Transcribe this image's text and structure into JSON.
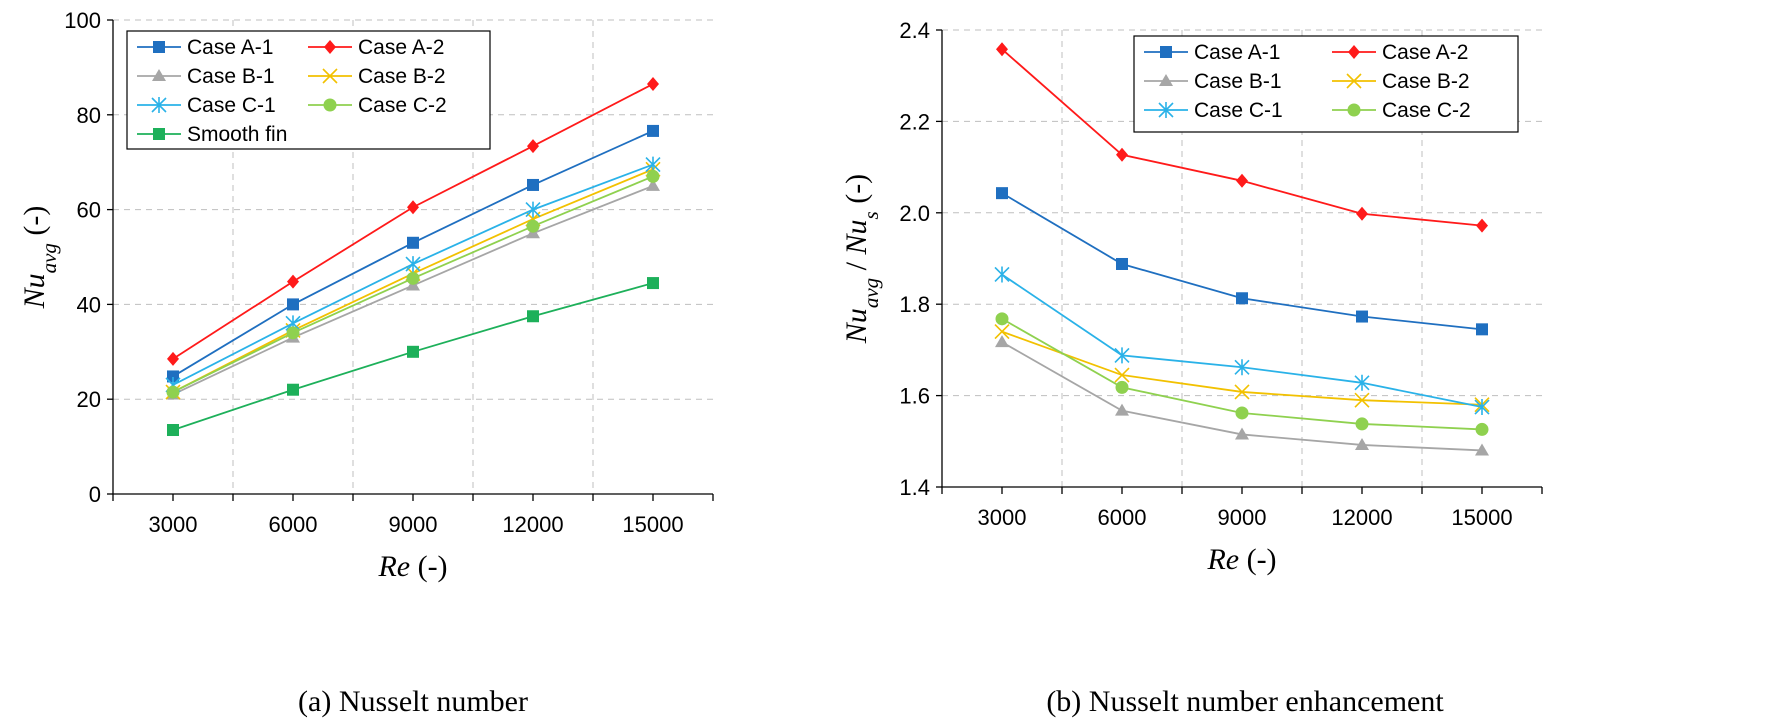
{
  "colors": {
    "Case A-1": "#1f6fc0",
    "Case A-2": "#ff1a1a",
    "Case B-1": "#a6a6a6",
    "Case B-2": "#f2c100",
    "Case C-1": "#2ab2e8",
    "Case C-2": "#8fd14f",
    "Smooth fin": "#1db05a"
  },
  "markers": {
    "Case A-1": "square",
    "Case A-2": "diamond",
    "Case B-1": "triangle",
    "Case B-2": "x",
    "Case C-1": "star",
    "Case C-2": "circle",
    "Smooth fin": "square"
  },
  "chart_data": [
    {
      "type": "line",
      "title": "",
      "caption": "(a) Nusselt number",
      "xlabel_italic": "Re",
      "xlabel_rest": " (-)",
      "ylabel_main": "Nu",
      "ylabel_sub": "avg",
      "ylabel_rest": " (-)",
      "x": [
        3000,
        6000,
        9000,
        12000,
        15000
      ],
      "x_tick_labels": [
        "3000",
        "6000",
        "9000",
        "12000",
        "15000"
      ],
      "xlim": [
        1500,
        16500
      ],
      "ylim": [
        0,
        100
      ],
      "y_ticks": [
        0,
        20,
        40,
        60,
        80,
        100
      ],
      "y_tick_labels": [
        "0",
        "20",
        "40",
        "60",
        "80",
        "100"
      ],
      "legend_position": "top-left",
      "grid": true,
      "series": [
        {
          "name": "Case A-1",
          "values": [
            24.8,
            40.0,
            53.0,
            65.2,
            76.6
          ]
        },
        {
          "name": "Case A-2",
          "values": [
            28.5,
            44.8,
            60.5,
            73.4,
            86.5
          ]
        },
        {
          "name": "Case B-1",
          "values": [
            21.0,
            33.0,
            44.0,
            55.0,
            65.0
          ]
        },
        {
          "name": "Case B-2",
          "values": [
            21.5,
            34.5,
            46.5,
            58.0,
            68.5
          ]
        },
        {
          "name": "Case C-1",
          "values": [
            23.0,
            36.0,
            48.5,
            60.0,
            69.5
          ]
        },
        {
          "name": "Case C-2",
          "values": [
            21.5,
            34.0,
            45.5,
            56.5,
            67.0
          ]
        },
        {
          "name": "Smooth fin",
          "values": [
            13.5,
            22.0,
            30.0,
            37.5,
            44.5
          ]
        }
      ]
    },
    {
      "type": "line",
      "title": "",
      "caption": "(b) Nusselt number enhancement",
      "xlabel_italic": "Re",
      "xlabel_rest": " (-)",
      "ylabel_main": "Nu",
      "ylabel_sub": "avg",
      "ylabel_sep": " / ",
      "ylabel_main2": "Nu",
      "ylabel_sub2": "s",
      "ylabel_rest": " (-)",
      "x": [
        3000,
        6000,
        9000,
        12000,
        15000
      ],
      "x_tick_labels": [
        "3000",
        "6000",
        "9000",
        "12000",
        "15000"
      ],
      "xlim": [
        1500,
        16500
      ],
      "ylim": [
        1.4,
        2.4
      ],
      "y_ticks": [
        1.4,
        1.6,
        1.8,
        2.0,
        2.2,
        2.4
      ],
      "y_tick_labels": [
        "1.4",
        "1.6",
        "1.8",
        "2.0",
        "2.2",
        "2.4"
      ],
      "legend_position": "top-right",
      "grid": true,
      "series": [
        {
          "name": "Case A-1",
          "values": [
            2.043,
            1.888,
            1.813,
            1.773,
            1.745
          ]
        },
        {
          "name": "Case A-2",
          "values": [
            2.358,
            2.127,
            2.07,
            1.998,
            1.972
          ]
        },
        {
          "name": "Case B-1",
          "values": [
            1.717,
            1.567,
            1.515,
            1.492,
            1.48
          ]
        },
        {
          "name": "Case B-2",
          "values": [
            1.74,
            1.645,
            1.608,
            1.59,
            1.58
          ]
        },
        {
          "name": "Case C-1",
          "values": [
            1.865,
            1.688,
            1.662,
            1.628,
            1.575
          ]
        },
        {
          "name": "Case C-2",
          "values": [
            1.768,
            1.618,
            1.562,
            1.538,
            1.526
          ]
        }
      ]
    }
  ]
}
